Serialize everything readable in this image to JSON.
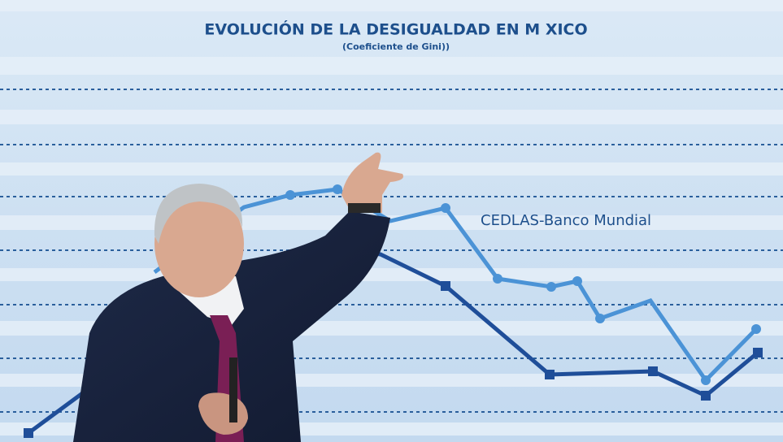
{
  "screen": {
    "title": "EVOLUCIÓN DE LA DESIGUALDAD EN M XICO",
    "subtitle": "(Coeficiente de Gini))",
    "series_label": "CEDLAS-Banco Mundial"
  }
}
